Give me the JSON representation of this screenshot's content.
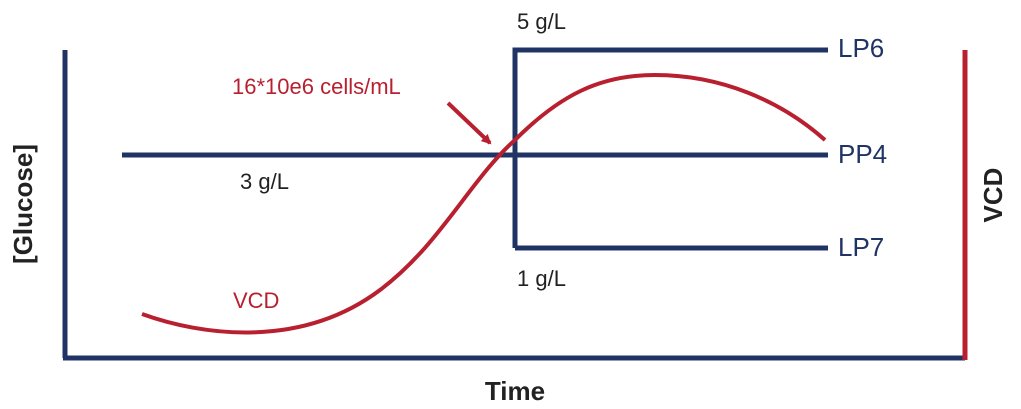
{
  "axes": {
    "x_label": "Time",
    "y_label": "[Glucose]",
    "y2_label": "VCD"
  },
  "lines": [
    {
      "label": "LP6",
      "annotation": "5 g/L"
    },
    {
      "label": "PP4",
      "annotation": "3 g/L"
    },
    {
      "label": "LP7",
      "annotation": "1 g/L"
    }
  ],
  "curve": {
    "label": "VCD",
    "annotation": "16*10e6 cells/mL"
  }
}
